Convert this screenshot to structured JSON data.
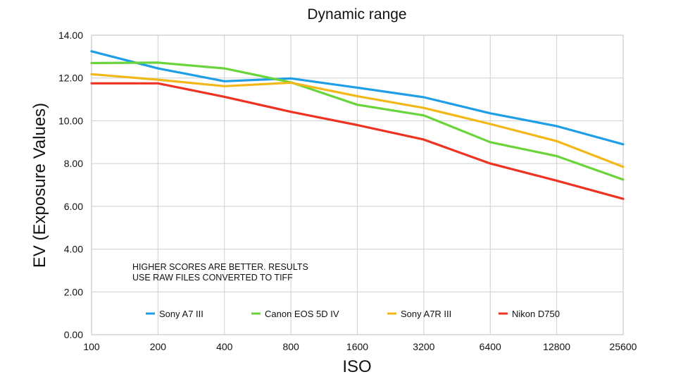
{
  "chart_data": {
    "type": "line",
    "title": "Dynamic range",
    "xlabel": "ISO",
    "ylabel": "EV (Exposure Values)",
    "categories": [
      "100",
      "200",
      "400",
      "800",
      "1600",
      "3200",
      "6400",
      "12800",
      "25600"
    ],
    "yticks": [
      "0.00",
      "2.00",
      "4.00",
      "6.00",
      "8.00",
      "10.00",
      "12.00",
      "14.00"
    ],
    "ylim": [
      0,
      14
    ],
    "grid": true,
    "annotation": [
      "HIGHER SCORES ARE BETTER. RESULTS",
      "USE RAW FILES CONVERTED TO TIFF"
    ],
    "legend_position": "bottom",
    "series": [
      {
        "name": "Sony A7 III",
        "color": "#1e9ee6",
        "values": [
          13.25,
          12.45,
          11.85,
          11.98,
          11.55,
          11.1,
          10.35,
          9.75,
          8.9
        ]
      },
      {
        "name": "Canon EOS 5D IV",
        "color": "#6ad43c",
        "values": [
          12.7,
          12.72,
          12.45,
          11.8,
          10.75,
          10.25,
          9.0,
          8.35,
          7.25
        ]
      },
      {
        "name": "Sony A7R III",
        "color": "#f2b81a",
        "values": [
          12.18,
          11.92,
          11.62,
          11.78,
          11.15,
          10.6,
          9.85,
          9.05,
          7.85
        ]
      },
      {
        "name": "Nikon D750",
        "color": "#ee3322",
        "values": [
          11.75,
          11.75,
          11.12,
          10.42,
          9.8,
          9.12,
          8.0,
          7.2,
          6.35
        ]
      }
    ]
  }
}
